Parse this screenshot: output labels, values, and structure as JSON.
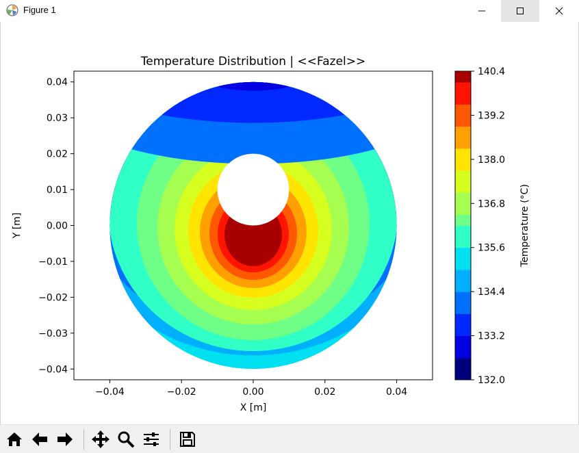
{
  "window": {
    "title": "Figure 1"
  },
  "toolbar": {
    "buttons": [
      "home-icon",
      "back-arrow-icon",
      "forward-arrow-icon",
      "pan-icon",
      "zoom-icon",
      "configure-subplots-icon",
      "save-icon"
    ]
  },
  "colorbar": {
    "label": "Temperature (°C)",
    "ticks": [
      "140.4",
      "139.2",
      "138.0",
      "136.8",
      "135.6",
      "134.4",
      "133.2",
      "132.0"
    ],
    "levels": [
      132.0,
      132.3,
      132.6,
      132.9,
      133.2,
      133.5,
      133.8,
      134.1,
      134.4,
      134.7,
      135.0,
      135.3,
      135.6,
      135.9,
      136.2,
      136.5,
      136.8,
      137.1,
      137.4,
      137.7,
      138.0,
      138.3,
      138.6,
      138.9,
      139.2,
      139.5,
      139.8,
      140.1,
      140.4
    ],
    "colors": [
      "#00007f",
      "#0000e0",
      "#0028ff",
      "#0070ff",
      "#00b0ff",
      "#00e0f0",
      "#30ffc6",
      "#70ff86",
      "#a6ff50",
      "#d6ff20",
      "#ffe400",
      "#ffa000",
      "#ff5800",
      "#ff1400",
      "#a80000"
    ]
  },
  "chart_data": {
    "type": "contourf",
    "title": "Temperature Distribution | <<Fazel>>",
    "xlabel": "X [m]",
    "ylabel": "Y [m]",
    "xlim": [
      -0.05,
      0.05
    ],
    "ylim": [
      -0.043,
      0.043
    ],
    "xticks": [
      "−0.04",
      "−0.02",
      "0.00",
      "0.02",
      "0.04"
    ],
    "yticks": [
      "0.04",
      "0.03",
      "0.02",
      "0.01",
      "0.00",
      "−0.01",
      "−0.02",
      "−0.03",
      "−0.04"
    ],
    "xtick_values": [
      -0.04,
      -0.02,
      0.0,
      0.02,
      0.04
    ],
    "ytick_values": [
      0.04,
      0.03,
      0.02,
      0.01,
      0.0,
      -0.01,
      -0.02,
      -0.03,
      -0.04
    ],
    "domain": {
      "outer_radius": 0.04,
      "hole_center": [
        0.0,
        0.01
      ],
      "hole_radius": 0.01
    },
    "value_range": [
      132.0,
      140.4
    ],
    "band_colors": [
      "#00e0f0",
      "#30ffc6",
      "#70ff86",
      "#a6ff50",
      "#d6ff20",
      "#ffe400",
      "#ffa000",
      "#ff5800",
      "#ff1400",
      "#a80000"
    ],
    "cold_band_colors": [
      "#00b0ff",
      "#0070ff",
      "#0028ff",
      "#0000e0"
    ]
  }
}
